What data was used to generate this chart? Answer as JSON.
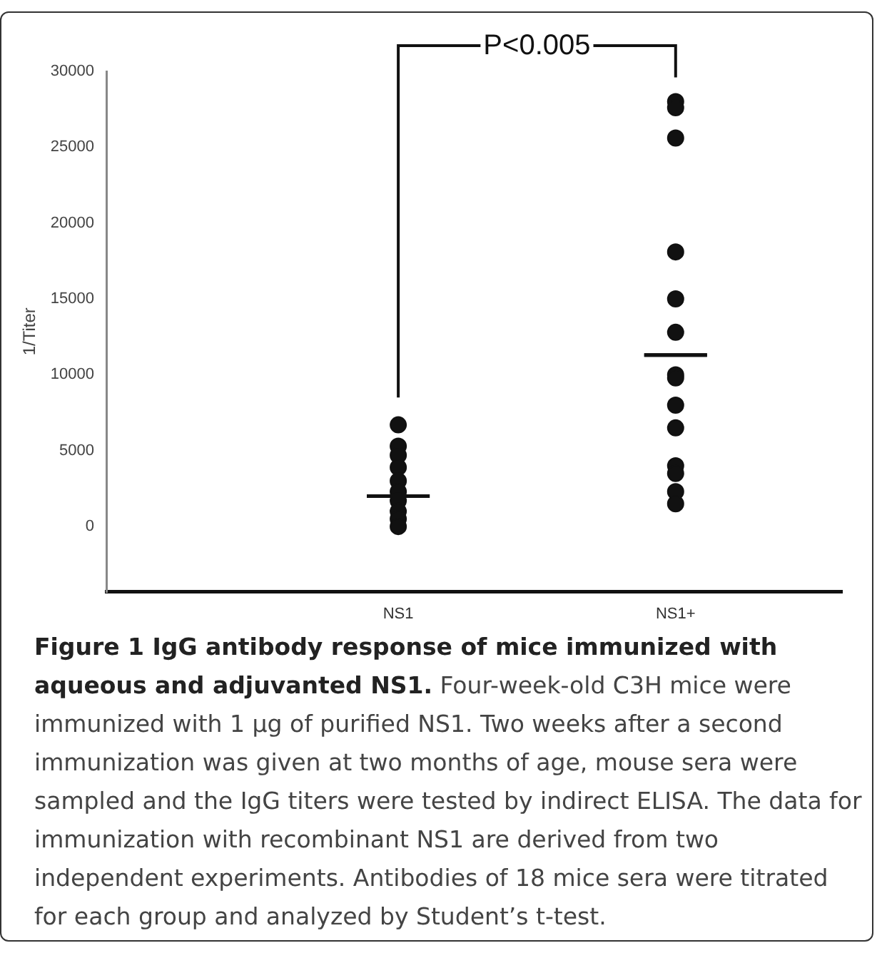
{
  "chart_data": {
    "type": "scatter",
    "title": "Figure 1 IgG antibody response of mice immunized with aqueous and adjuvanted NS1.",
    "ylabel": "1/Titer",
    "categories": [
      "NS1",
      "NS1+"
    ],
    "series": [
      {
        "type": "scatter",
        "color": "#111111",
        "x": [
          "NS1",
          "NS1",
          "NS1",
          "NS1",
          "NS1",
          "NS1",
          "NS1",
          "NS1",
          "NS1",
          "NS1"
        ],
        "values": [
          6700,
          5300,
          4700,
          3900,
          3000,
          2300,
          1700,
          1000,
          500,
          0
        ]
      },
      {
        "type": "scatter",
        "color": "#111111",
        "x": [
          "NS1+",
          "NS1+",
          "NS1+",
          "NS1+",
          "NS1+",
          "NS1+",
          "NS1+",
          "NS1+",
          "NS1+",
          "NS1+",
          "NS1+",
          "NS1+",
          "NS1+",
          "NS1+"
        ],
        "values": [
          28000,
          27600,
          25600,
          18100,
          15000,
          12800,
          10000,
          9800,
          8000,
          6500,
          4000,
          3500,
          2300,
          1500
        ]
      },
      {
        "type": "box",
        "color": "#111111",
        "boxes": [
          {
            "low": 2000,
            "q1": 2000,
            "median": 2000,
            "q3": 2000,
            "high": 2000
          },
          {
            "low": 11300,
            "q1": 11300,
            "median": 11300,
            "q3": 11300,
            "high": 11300
          }
        ]
      }
    ],
    "ylim": [
      -4300,
      30000
    ],
    "yticks": [
      0,
      5000,
      10000,
      15000,
      20000,
      25000,
      30000
    ],
    "grid": false,
    "legend": false,
    "marker": "circle",
    "annotations": [
      "P<0.005",
      "Four-week-old C3H mice were immunized with 1 µg of purified NS1. Two weeks after a second immunization was given at two months of age, mouse sera were sampled and the IgG titers were tested by indirect ELISA. The data for immunization with recombinant NS1 are derived from two independent experiments. Antibodies of 18 mice sera were titrated for each group and analyzed by Student’s t-test."
    ]
  }
}
